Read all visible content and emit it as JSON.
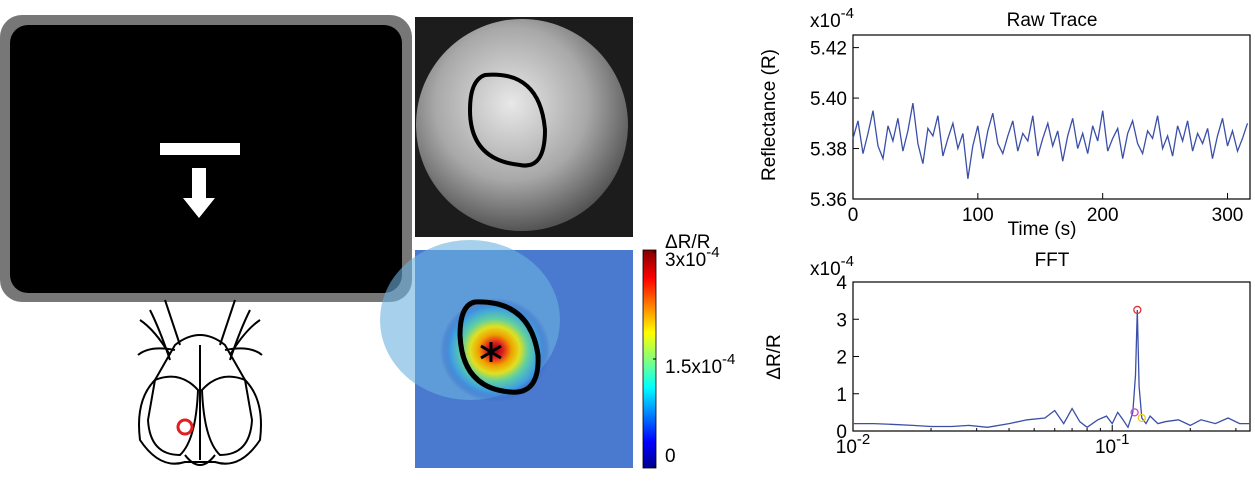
{
  "chart_data": [
    {
      "type": "line",
      "title": "Raw Trace",
      "x_label": "Time (s)",
      "y_label": "Reflectance (R)",
      "y_multiplier": "x10-4",
      "xlim": [
        0,
        318
      ],
      "xticks": [
        0,
        100,
        200,
        300
      ],
      "ylim": [
        5.36,
        5.425
      ],
      "yticks": [
        5.36,
        5.38,
        {
          "value": 5.4,
          "label": "5.40"
        },
        5.42
      ],
      "color": "#3b4fa8",
      "x": [
        0,
        4,
        8,
        12,
        16,
        20,
        24,
        28,
        32,
        36,
        40,
        44,
        48,
        52,
        56,
        60,
        64,
        68,
        72,
        76,
        80,
        84,
        88,
        92,
        96,
        100,
        104,
        108,
        112,
        116,
        120,
        124,
        128,
        132,
        136,
        140,
        144,
        148,
        152,
        156,
        160,
        164,
        168,
        172,
        176,
        180,
        184,
        188,
        192,
        196,
        200,
        204,
        208,
        212,
        216,
        220,
        224,
        228,
        232,
        236,
        240,
        244,
        248,
        252,
        256,
        260,
        264,
        268,
        272,
        276,
        280,
        284,
        288,
        292,
        296,
        300,
        304,
        308,
        312,
        316
      ],
      "values": [
        5.384,
        5.391,
        5.378,
        5.386,
        5.395,
        5.381,
        5.376,
        5.389,
        5.383,
        5.392,
        5.379,
        5.387,
        5.398,
        5.382,
        5.374,
        5.388,
        5.385,
        5.393,
        5.377,
        5.384,
        5.39,
        5.38,
        5.386,
        5.368,
        5.381,
        5.389,
        5.376,
        5.387,
        5.394,
        5.382,
        5.378,
        5.385,
        5.391,
        5.379,
        5.386,
        5.383,
        5.393,
        5.377,
        5.384,
        5.39,
        5.381,
        5.387,
        5.375,
        5.385,
        5.392,
        5.38,
        5.386,
        5.378,
        5.389,
        5.383,
        5.395,
        5.379,
        5.384,
        5.388,
        5.376,
        5.386,
        5.391,
        5.382,
        5.378,
        5.387,
        5.384,
        5.393,
        5.38,
        5.385,
        5.377,
        5.389,
        5.383,
        5.391,
        5.379,
        5.386,
        5.382,
        5.388,
        5.376,
        5.385,
        5.392,
        5.381,
        5.387,
        5.379,
        5.384,
        5.39
      ]
    },
    {
      "type": "line",
      "title": "FFT",
      "y_label": "ΔR/R",
      "y_multiplier": "x10-4",
      "log_x": true,
      "xlim": [
        0.01,
        0.34
      ],
      "xticks": [
        {
          "value": 0.01,
          "label": "10-2"
        },
        {
          "value": 0.1,
          "label": "10-1"
        }
      ],
      "ylim": [
        0,
        4
      ],
      "yticks": [
        0,
        1,
        2,
        3,
        4
      ],
      "color": "#3b4fa8",
      "x": [
        0.01,
        0.012,
        0.014,
        0.017,
        0.02,
        0.024,
        0.028,
        0.033,
        0.04,
        0.047,
        0.055,
        0.06,
        0.065,
        0.07,
        0.075,
        0.08,
        0.088,
        0.095,
        0.1,
        0.105,
        0.11,
        0.115,
        0.12,
        0.123,
        0.125,
        0.127,
        0.13,
        0.135,
        0.14,
        0.15,
        0.16,
        0.18,
        0.2,
        0.22,
        0.25,
        0.28,
        0.31,
        0.34
      ],
      "values": [
        0.2,
        0.2,
        0.18,
        0.15,
        0.12,
        0.12,
        0.15,
        0.1,
        0.2,
        0.3,
        0.35,
        0.55,
        0.2,
        0.6,
        0.25,
        0.1,
        0.3,
        0.4,
        0.2,
        0.5,
        0.3,
        0.1,
        0.5,
        1.5,
        3.25,
        1.2,
        0.35,
        0.2,
        0.4,
        0.2,
        0.25,
        0.3,
        0.15,
        0.3,
        0.2,
        0.35,
        0.2,
        0.2
      ],
      "points": {
        "x": [
          0.125,
          0.122,
          0.13
        ],
        "values": [
          3.25,
          0.5,
          0.35
        ],
        "colors": [
          "#e03030",
          "#d040d0",
          "#e8d020"
        ]
      }
    },
    {
      "type": "colorbar",
      "title": "ΔR/R",
      "zlim": [
        0,
        0.0003
      ],
      "zticks": [
        0,
        {
          "value": 0.00015,
          "label": "1.5x10-4"
        },
        {
          "value": 0.0003,
          "label": "3x10-4"
        }
      ]
    }
  ]
}
